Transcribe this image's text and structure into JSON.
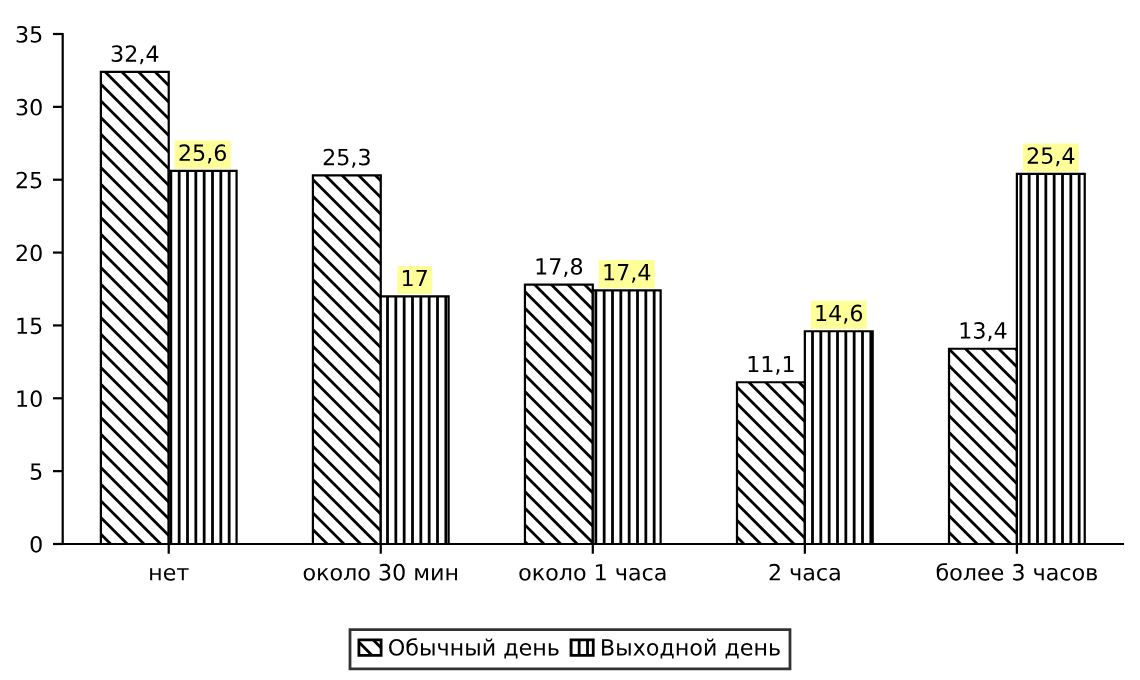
{
  "chart_data": {
    "type": "bar",
    "categories": [
      "нет",
      "около 30 мин",
      "около 1 часа",
      "2 часа",
      "более 3 часов"
    ],
    "series": [
      {
        "name": "Обычный день",
        "color": "#000000",
        "values": [
          32.4,
          25.3,
          17.8,
          11.1,
          13.4
        ],
        "value_labels": [
          "32,4",
          "25,3",
          "17,8",
          "11,1",
          "13,4"
        ]
      },
      {
        "name": "Выходной день",
        "color": "#000000",
        "values": [
          25.6,
          17,
          17.4,
          14.6,
          25.4
        ],
        "value_labels": [
          "25,6",
          "17",
          "17,4",
          "14,6",
          "25,4"
        ]
      }
    ],
    "ylim": [
      0,
      35
    ],
    "yticks": [
      0,
      5,
      10,
      15,
      20,
      25,
      30,
      35
    ],
    "grid": false,
    "legend": "bottom"
  }
}
